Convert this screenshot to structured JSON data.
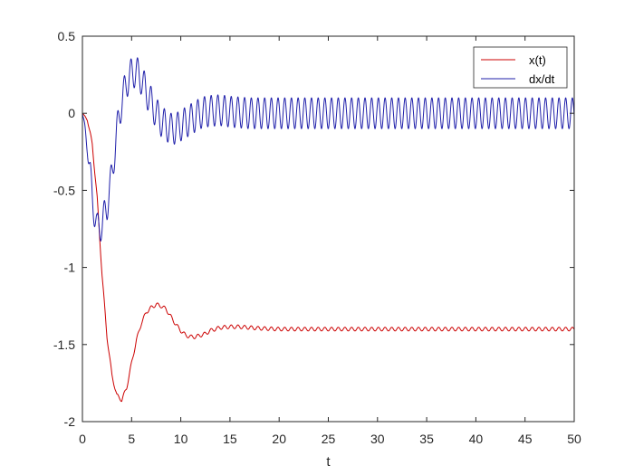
{
  "chart_data": {
    "type": "line",
    "title": "",
    "xlabel": "t",
    "ylabel": "",
    "xlim": [
      0,
      50
    ],
    "ylim": [
      -2,
      0.5
    ],
    "x_ticks": [
      0,
      5,
      10,
      15,
      20,
      25,
      30,
      35,
      40,
      45,
      50
    ],
    "x_tick_labels": [
      "0",
      "5",
      "10",
      "15",
      "20",
      "25",
      "30",
      "35",
      "40",
      "45",
      "50"
    ],
    "y_ticks": [
      0.5,
      0,
      -0.5,
      -1,
      -1.5,
      -2
    ],
    "y_tick_labels": [
      "0.5",
      "0",
      "-0.5",
      "-1",
      "-1.5",
      "-2"
    ],
    "grid": false,
    "legend_position": "top-right",
    "series": [
      {
        "name": "x(t)",
        "color": "#cc0000",
        "x": [
          0,
          0.5,
          1,
          1.5,
          2,
          2.5,
          3,
          3.5,
          4,
          4.5,
          5,
          5.5,
          6,
          6.5,
          7,
          7.5,
          8,
          8.5,
          9,
          9.5,
          10,
          10.5,
          11,
          11.5,
          12,
          12.5,
          13,
          13.5,
          14,
          15,
          16,
          17,
          18,
          20,
          22,
          25,
          30,
          35,
          40,
          45,
          50
        ],
        "y": [
          0,
          -0.04,
          -0.2,
          -0.55,
          -1.05,
          -1.45,
          -1.7,
          -1.83,
          -1.86,
          -1.78,
          -1.62,
          -1.47,
          -1.36,
          -1.29,
          -1.26,
          -1.24,
          -1.25,
          -1.27,
          -1.32,
          -1.37,
          -1.41,
          -1.44,
          -1.45,
          -1.45,
          -1.44,
          -1.43,
          -1.41,
          -1.4,
          -1.39,
          -1.385,
          -1.385,
          -1.39,
          -1.395,
          -1.4,
          -1.4,
          -1.4,
          -1.4,
          -1.4,
          -1.4,
          -1.4,
          -1.4
        ],
        "oscillation_amplitude": 0.012,
        "oscillation_period": 0.68
      },
      {
        "name": "dx/dt",
        "color": "#1f1faa",
        "x": [
          0,
          0.5,
          1,
          1.5,
          2,
          2.5,
          3,
          3.5,
          4,
          4.5,
          5,
          5.5,
          6,
          6.5,
          7,
          7.5,
          8,
          8.5,
          9,
          9.5,
          10,
          10.5,
          11,
          11.5,
          12,
          12.5,
          13,
          14,
          15,
          17,
          20,
          25,
          30,
          35,
          40,
          45,
          50
        ],
        "y": [
          0,
          -0.2,
          -0.55,
          -0.75,
          -0.72,
          -0.6,
          -0.4,
          -0.12,
          0.08,
          0.2,
          0.26,
          0.27,
          0.22,
          0.14,
          0.07,
          0.0,
          -0.05,
          -0.08,
          -0.1,
          -0.1,
          -0.08,
          -0.06,
          -0.04,
          -0.02,
          0.0,
          0.01,
          0.015,
          0.02,
          0.01,
          0.0,
          0.0,
          0.0,
          0.0,
          0.0,
          0.0,
          0.0,
          0.0
        ],
        "oscillation_amplitude": 0.1,
        "oscillation_period": 0.68
      }
    ]
  }
}
